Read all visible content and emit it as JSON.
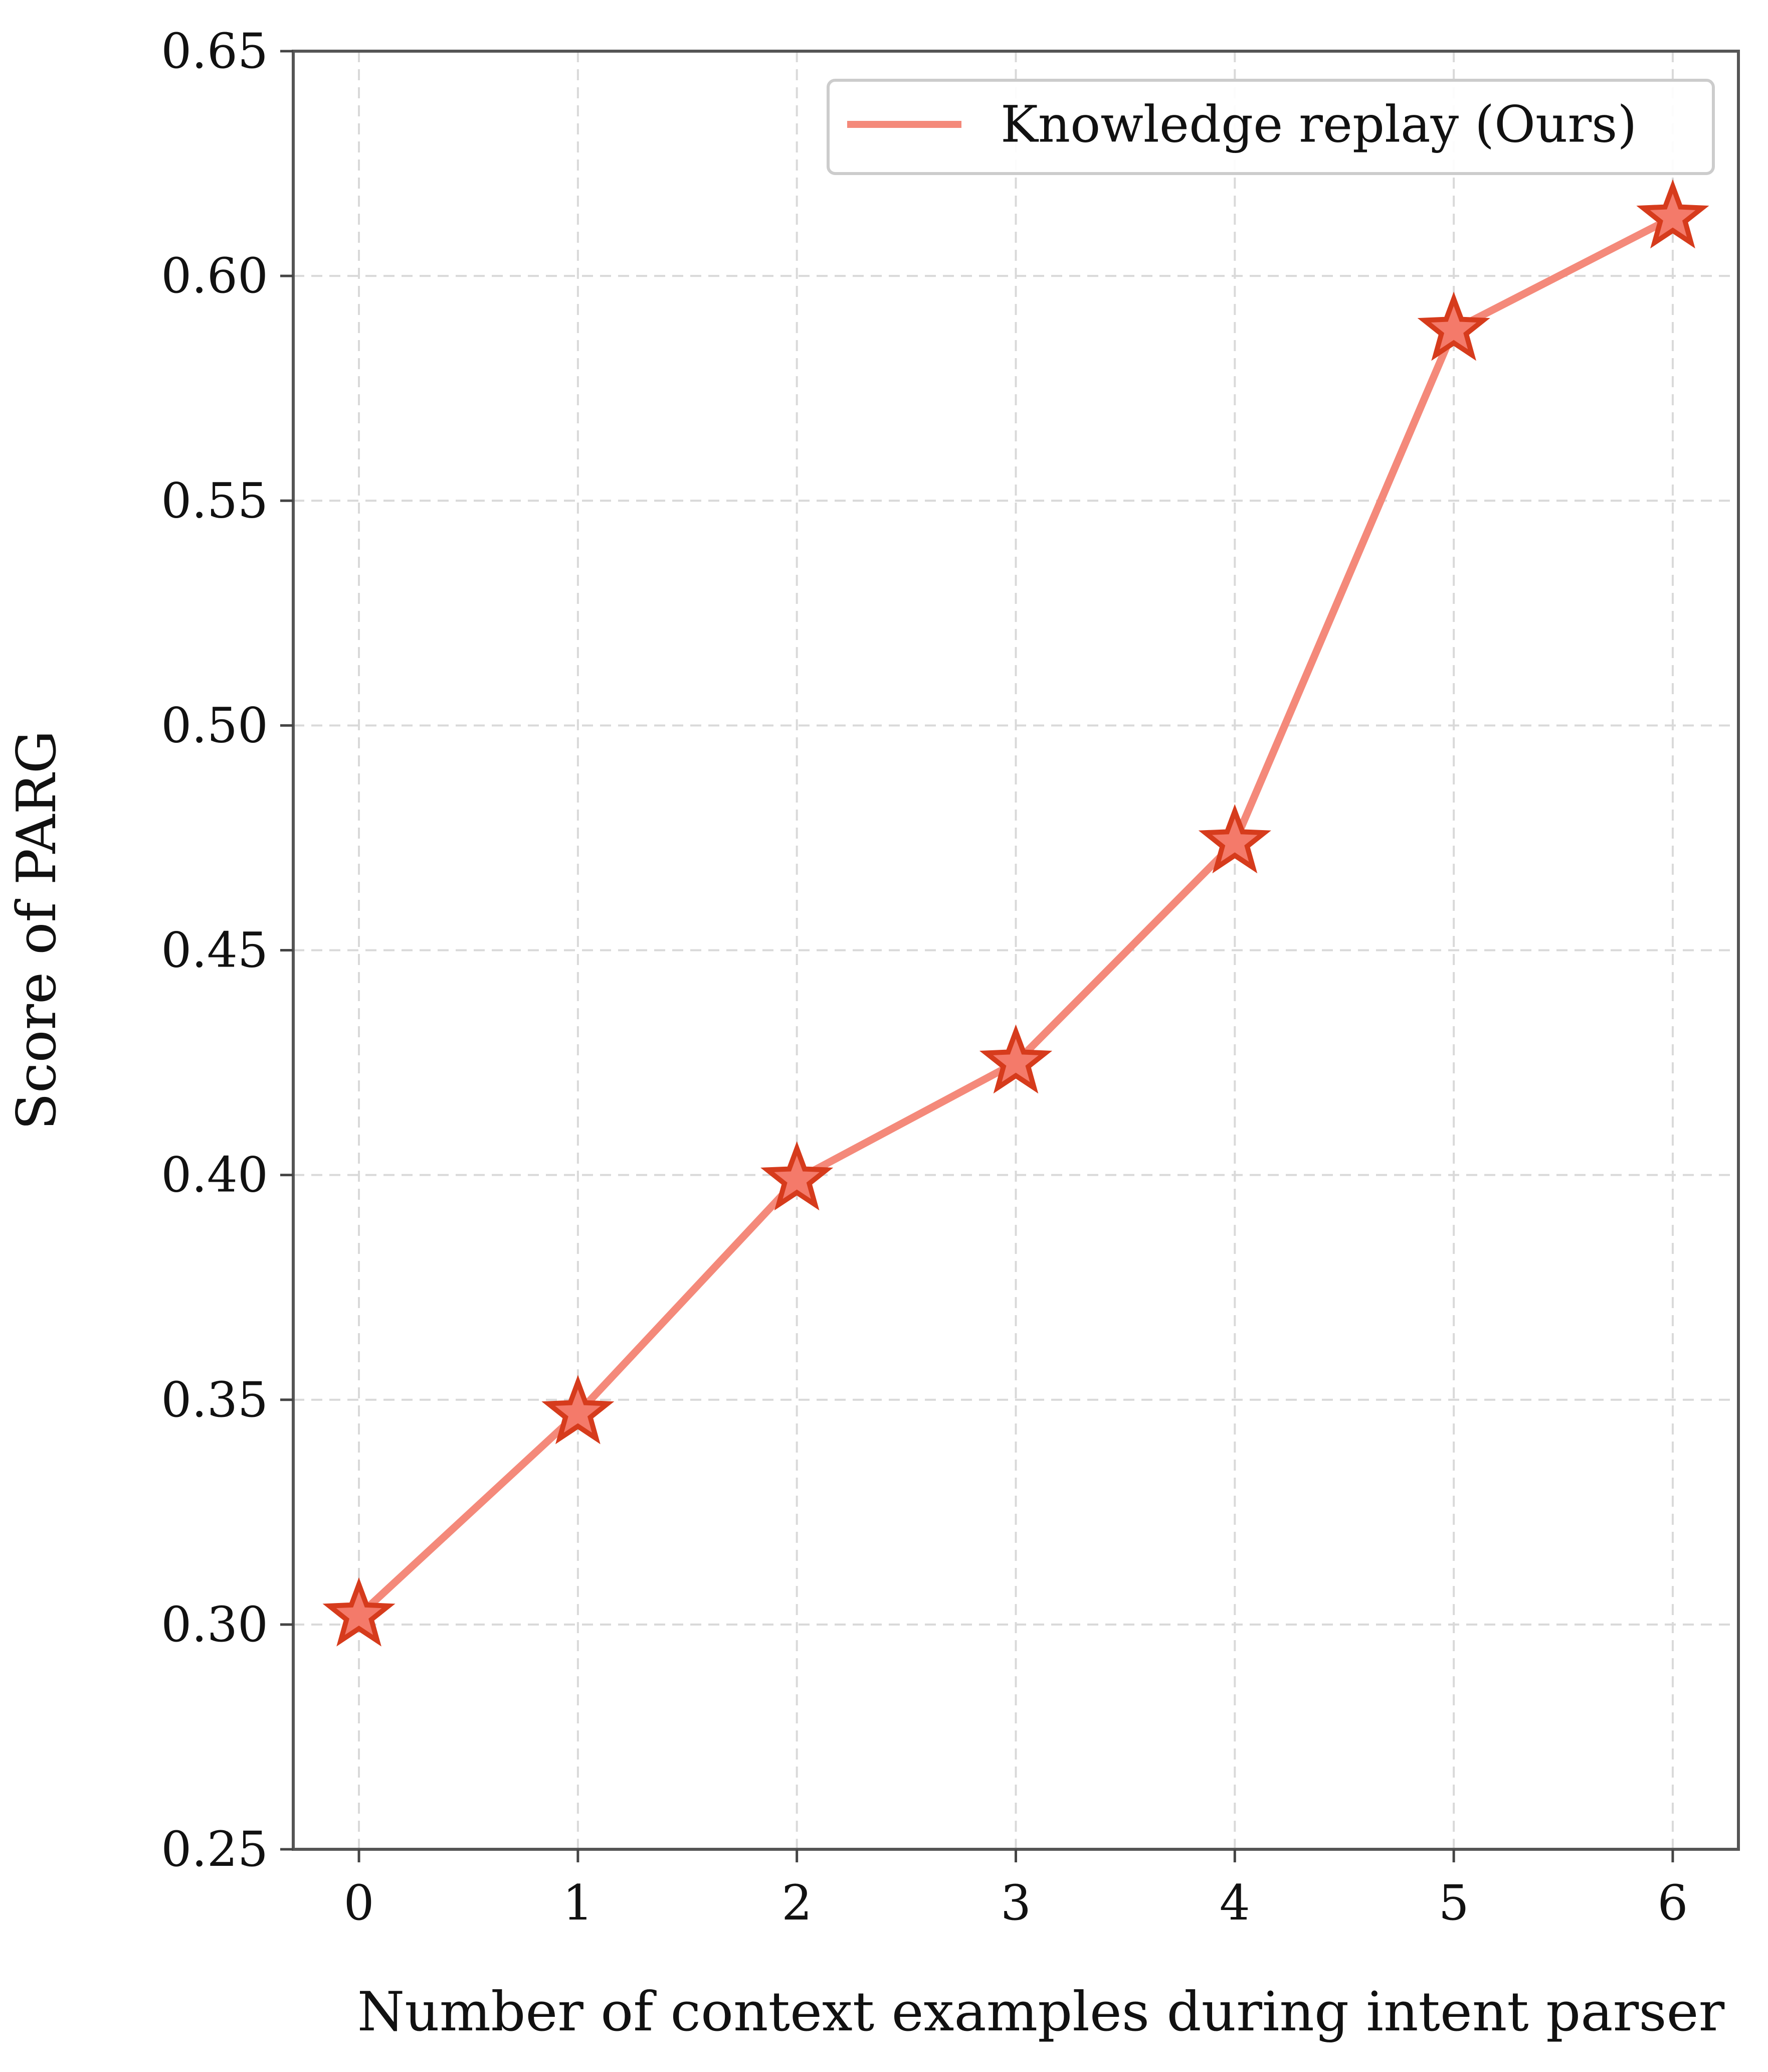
{
  "chart_data": {
    "type": "line",
    "title": "",
    "xlabel": "Number of context examples during intent parser",
    "ylabel": "Score of PARG",
    "x": [
      0,
      1,
      2,
      3,
      4,
      5,
      6
    ],
    "xticks": [
      "0",
      "1",
      "2",
      "3",
      "4",
      "5",
      "6"
    ],
    "xlim": [
      -0.3,
      6.3
    ],
    "yticks": [
      "0.25",
      "0.30",
      "0.35",
      "0.40",
      "0.45",
      "0.50",
      "0.55",
      "0.60",
      "0.65"
    ],
    "ylim": [
      0.25,
      0.65
    ],
    "grid": true,
    "legend_position": "top-right",
    "series": [
      {
        "name": "Knowledge replay (Ours)",
        "values": [
          0.302,
          0.347,
          0.399,
          0.425,
          0.474,
          0.588,
          0.613
        ],
        "line_color": "#F4897A",
        "marker": "star",
        "marker_fill": "#F47A6A",
        "marker_edge": "#D63B1C"
      }
    ]
  }
}
